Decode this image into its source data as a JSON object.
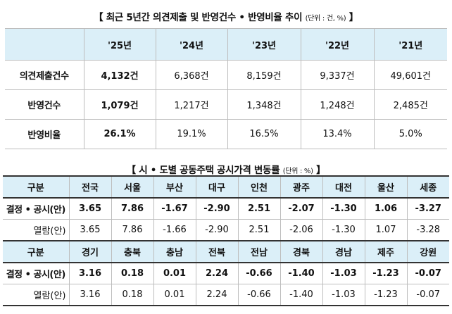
{
  "title1": {
    "open": "【",
    "text": "최근 5년간 의견제출 및 반영건수 • 반영비율 추이",
    "unit": "(단위 : 건, %)",
    "close": "】"
  },
  "table1": {
    "years": [
      "'25년",
      "'24년",
      "'23년",
      "'22년",
      "'21년"
    ],
    "rows": [
      {
        "label": "의견제출건수",
        "values": [
          "4,132건",
          "6,368건",
          "8,159건",
          "9,337건",
          "49,601건"
        ]
      },
      {
        "label": "반영건수",
        "values": [
          "1,079건",
          "1,217건",
          "1,348건",
          "1,248건",
          "2,485건"
        ]
      },
      {
        "label": "반영비율",
        "values": [
          "26.1%",
          "19.1%",
          "16.5%",
          "13.4%",
          "5.0%"
        ]
      }
    ]
  },
  "title2": {
    "open": "【",
    "text": "시 • 도별 공동주택 공시가격 변동률",
    "unit": "(단위 : %)",
    "close": "】"
  },
  "table2": {
    "block1": {
      "header_label": "구분",
      "regions": [
        "전국",
        "서울",
        "부산",
        "대구",
        "인천",
        "광주",
        "대전",
        "울산",
        "세종"
      ],
      "final_label": "결정 • 공시(안)",
      "final": [
        "3.65",
        "7.86",
        "-1.67",
        "-2.90",
        "2.51",
        "-2.07",
        "-1.30",
        "1.06",
        "-3.27"
      ],
      "draft_label": "열람(안)",
      "draft": [
        "3.65",
        "7.86",
        "-1.66",
        "-2.90",
        "2.51",
        "-2.06",
        "-1.30",
        "1.07",
        "-3.28"
      ]
    },
    "block2": {
      "header_label": "구분",
      "regions": [
        "경기",
        "충북",
        "충남",
        "전북",
        "전남",
        "경북",
        "경남",
        "제주",
        "강원"
      ],
      "final_label": "결정 • 공시(안)",
      "final": [
        "3.16",
        "0.18",
        "0.01",
        "2.24",
        "-0.66",
        "-1.40",
        "-1.03",
        "-1.23",
        "-0.07"
      ],
      "draft_label": "열람(안)",
      "draft": [
        "3.16",
        "0.18",
        "0.01",
        "2.24",
        "-0.66",
        "-1.40",
        "-1.03",
        "-1.23",
        "-0.07"
      ]
    }
  }
}
